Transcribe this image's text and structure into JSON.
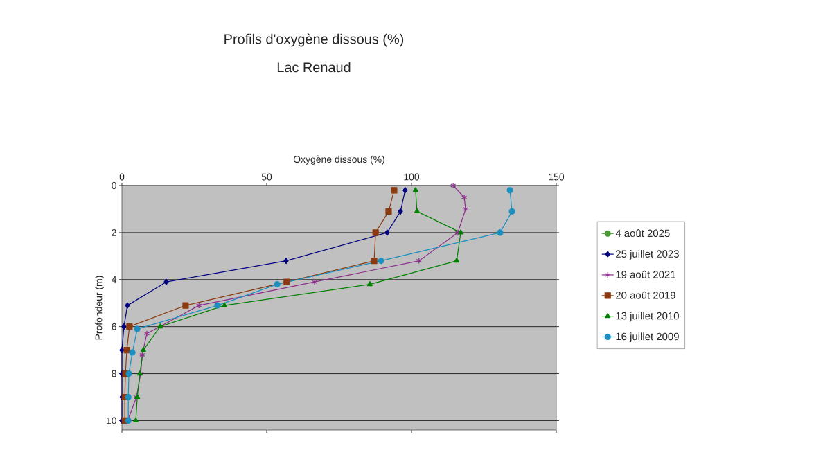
{
  "chart_data": {
    "type": "line",
    "title": "Profils d'oxygène dissous (%)",
    "subtitle": "Lac Renaud",
    "xlabel": "Oxygène dissous (%)",
    "ylabel": "Profondeur (m)",
    "xlim": [
      0,
      150
    ],
    "xticks": [
      0,
      50,
      100,
      150
    ],
    "ylim": [
      10.4,
      0
    ],
    "yticks": [
      0,
      2,
      4,
      6,
      8,
      10
    ],
    "grid": "y",
    "legend": "right",
    "series": [
      {
        "name": "4 août 2025",
        "color": "#4a9a35",
        "marker": "circle",
        "x": [
          null
        ],
        "values": [
          null
        ]
      },
      {
        "name": "25 juillet 2023",
        "color": "#000080",
        "marker": "diamond",
        "x": [
          97.8,
          96.2,
          91.6,
          56.7,
          15.3,
          1.9,
          0.7,
          0,
          0,
          0,
          0
        ],
        "values": [
          0.2,
          1.1,
          2,
          3.2,
          4.1,
          5.1,
          6,
          7,
          8,
          9,
          10
        ]
      },
      {
        "name": "19 août 2021",
        "color": "#8e2c8e",
        "marker": "cross",
        "x": [
          114.4,
          118.2,
          118.7,
          116,
          102.6,
          66.5,
          26.6,
          8.6,
          7,
          6.5,
          5,
          2
        ],
        "values": [
          0,
          0.5,
          1,
          2,
          3.2,
          4.1,
          5.1,
          6.3,
          7.2,
          8,
          9,
          10
        ]
      },
      {
        "name": "20 août 2019",
        "color": "#8b3a0f",
        "marker": "square",
        "x": [
          94,
          92.1,
          87.6,
          87.1,
          56.9,
          22,
          2.6,
          1.7,
          1.2,
          1,
          1
        ],
        "values": [
          0.2,
          1.1,
          2,
          3.2,
          4.1,
          5.1,
          6,
          7,
          8,
          9,
          10
        ]
      },
      {
        "name": "13 juillet 2010",
        "color": "#008000",
        "marker": "triangle",
        "x": [
          101.4,
          101.9,
          117,
          115.6,
          85.6,
          35.4,
          13.2,
          7.4,
          6.2,
          5.3,
          4.8
        ],
        "values": [
          0.2,
          1.1,
          2,
          3.2,
          4.2,
          5.1,
          6,
          7,
          8,
          9,
          10
        ]
      },
      {
        "name": "16 juillet 2009",
        "color": "#1a8fc0",
        "marker": "circle",
        "x": [
          134,
          134.7,
          130.6,
          89.5,
          53.6,
          33,
          5.3,
          3.6,
          2.4,
          2.2,
          2.2
        ],
        "values": [
          0.2,
          1.1,
          2,
          3.2,
          4.2,
          5.1,
          6.1,
          7.1,
          8,
          9,
          10
        ]
      }
    ]
  }
}
